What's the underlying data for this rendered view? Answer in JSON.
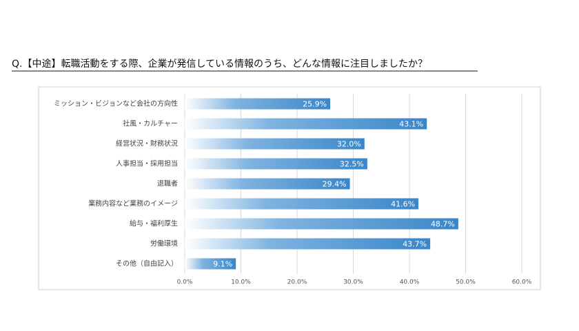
{
  "chart_data": {
    "type": "bar",
    "orientation": "horizontal",
    "title": "Q.【中途】転職活動をする際、企業が発信している情報のうち、どんな情報に注目しましたか？",
    "categories": [
      "ミッション・ビジョンなど会社の方向性",
      "社風・カルチャー",
      "経営状況・財務状況",
      "人事担当・採用担当",
      "退職者",
      "業務内容など業務のイメージ",
      "給与・福利厚生",
      "労働環境",
      "その他（自由記入）"
    ],
    "values": [
      25.9,
      43.1,
      32.0,
      32.5,
      29.4,
      41.6,
      48.7,
      43.7,
      9.1
    ],
    "value_labels": [
      "25.9%",
      "43.1%",
      "32.0%",
      "32.5%",
      "29.4%",
      "41.6%",
      "48.7%",
      "43.7%",
      "9.1%"
    ],
    "color": "#3a86c8",
    "xlim": [
      0,
      60
    ],
    "xticks": [
      {
        "value": 0,
        "label": "0.0%"
      },
      {
        "value": 10,
        "label": "10.0%"
      },
      {
        "value": 20,
        "label": "20.0%"
      },
      {
        "value": 30,
        "label": "30.0%"
      },
      {
        "value": 40,
        "label": "40.0%"
      },
      {
        "value": 50,
        "label": "50.0%"
      },
      {
        "value": 60,
        "label": "60.0%"
      }
    ],
    "grid": true
  }
}
